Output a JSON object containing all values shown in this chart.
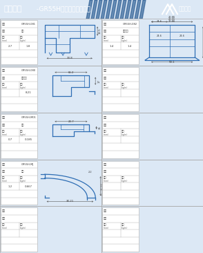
{
  "title_bold": "平开系列",
  "title_rest": " -GR55H隔热平开窗型材图",
  "company": "金威铝业",
  "header_color": "#2d6db4",
  "profile_color": "#2d6db4",
  "bg_color": "#dce8f5",
  "panel_bg": "#ffffff",
  "border_color": "#aaaaaa",
  "text_color": "#333333",
  "panels": [
    {
      "row": 0,
      "col": 0,
      "model": "GR55H-081",
      "name": "框料",
      "thick": "2.7",
      "weight": "1.8",
      "profile": "frame_corner"
    },
    {
      "row": 0,
      "col": 1,
      "model": "GR55H-082",
      "name": "导轨框架",
      "thick": "1.4",
      "weight": "1.4",
      "profile": "frame_side"
    },
    {
      "row": 1,
      "col": 0,
      "model": "GR55H-080",
      "name": "口地框架",
      "thick": "",
      "weight": "8.21",
      "profile": "door_sill"
    },
    {
      "row": 1,
      "col": 1,
      "model": "",
      "name": "",
      "thick": "",
      "weight": "",
      "profile": "empty"
    },
    {
      "row": 2,
      "col": 0,
      "model": "GR55H-M01",
      "name": "压角",
      "thick": "0.7",
      "weight": "0.185",
      "profile": "bracket"
    },
    {
      "row": 2,
      "col": 1,
      "model": "",
      "name": "",
      "thick": "",
      "weight": "",
      "profile": "empty"
    },
    {
      "row": 3,
      "col": 0,
      "model": "GR55H-MJ",
      "name": "拐角",
      "thick": "1.2",
      "weight": "0.667",
      "profile": "quarter_arc"
    },
    {
      "row": 3,
      "col": 1,
      "model": "",
      "name": "",
      "thick": "",
      "weight": "",
      "profile": "empty"
    },
    {
      "row": 4,
      "col": 0,
      "model": "",
      "name": "",
      "thick": "",
      "weight": "",
      "profile": "empty"
    },
    {
      "row": 4,
      "col": 1,
      "model": "",
      "name": "",
      "thick": "",
      "weight": "",
      "profile": "empty"
    }
  ]
}
